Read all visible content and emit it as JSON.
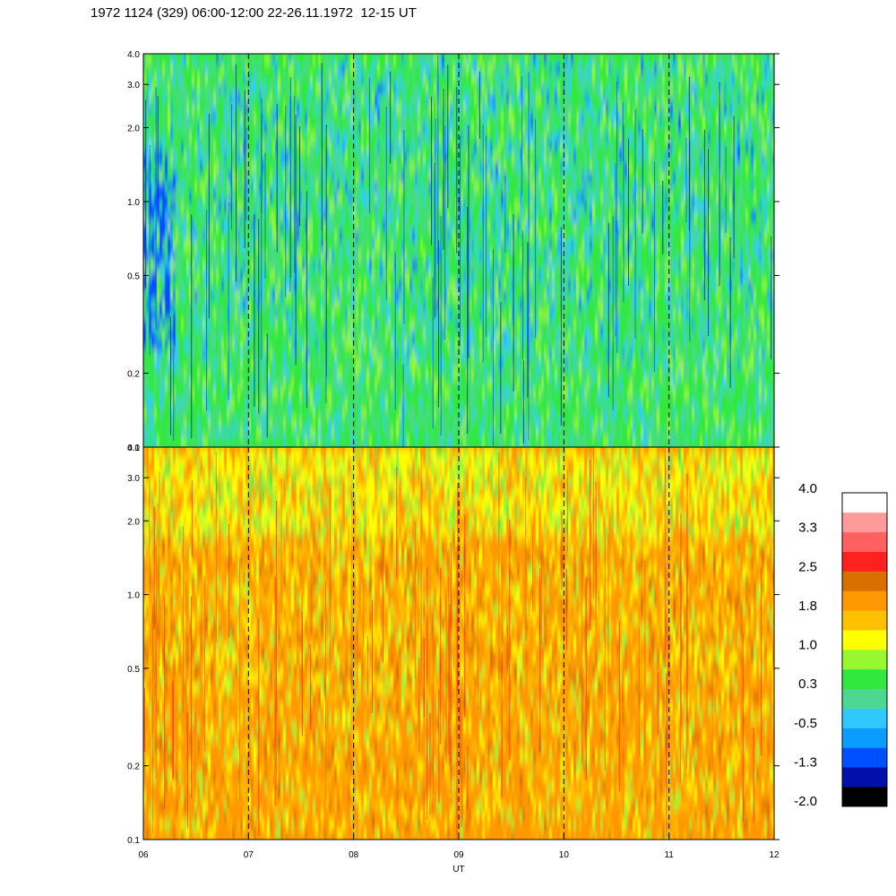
{
  "title": "1972 1124 (329) 06:00-12:00 22-26.11.1972  12-15 UT",
  "chart_data": [
    {
      "type": "heatmap",
      "panel": "top",
      "ylabel": "",
      "y_scale": "log",
      "ylim": [
        0.1,
        4.0
      ],
      "y_ticks": [
        0.1,
        0.2,
        0.5,
        1.0,
        2.0,
        3.0,
        4.0
      ],
      "y_tick_labels": [
        "0.1",
        "0.2",
        "0.5",
        "1.0",
        "2.0",
        "3.0",
        "4.0"
      ],
      "dominant_levels": [
        "0.3",
        "-0.5",
        "-1.3"
      ]
    },
    {
      "type": "heatmap",
      "panel": "bottom",
      "ylabel": "",
      "y_scale": "log",
      "ylim": [
        0.1,
        4.0
      ],
      "y_ticks": [
        0.1,
        0.2,
        0.5,
        1.0,
        2.0,
        3.0,
        4.0
      ],
      "y_tick_labels": [
        "0.1",
        "0.2",
        "0.5",
        "1.0",
        "2.0",
        "3.0",
        "4.0"
      ],
      "dominant_levels": [
        "1.8",
        "1.0",
        "0.3"
      ]
    }
  ],
  "x_axis": {
    "label": "UT",
    "range": [
      6,
      12
    ],
    "ticks": [
      6,
      7,
      8,
      9,
      10,
      11,
      12
    ],
    "tick_labels": [
      "06",
      "07",
      "08",
      "09",
      "10",
      "11",
      "12"
    ],
    "dashed_gridlines_at": [
      7,
      8,
      9,
      10,
      11
    ]
  },
  "colorbar": {
    "colors": [
      "#000000",
      "#0010a8",
      "#0050ff",
      "#0a9cff",
      "#30c8ff",
      "#4cd890",
      "#30e840",
      "#98f830",
      "#ffff00",
      "#ffc000",
      "#ff9800",
      "#d87000",
      "#ff2020",
      "#ff6060",
      "#ff9a9a",
      "#ffffff"
    ],
    "labels": [
      "-2.0",
      "-1.3",
      "-0.5",
      "0.3",
      "1.0",
      "1.8",
      "2.5",
      "3.3",
      "4.0"
    ]
  }
}
